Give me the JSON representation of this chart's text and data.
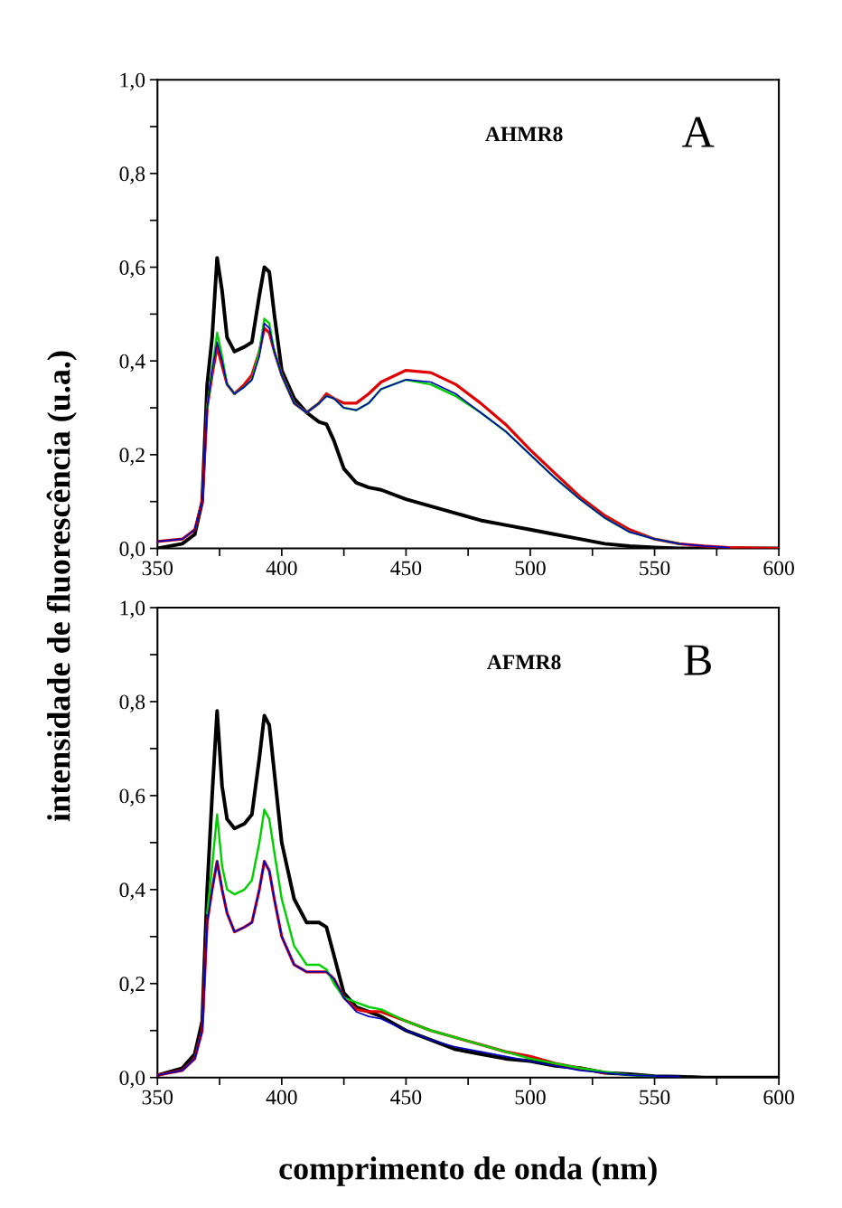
{
  "chart_data": [
    {
      "type": "line",
      "ylabel": "intensidade de fluorescência (u.a.)",
      "annotations": [
        "AHMR8",
        "A"
      ],
      "x": [
        350,
        360,
        365,
        368,
        370,
        372,
        374,
        376,
        378,
        381,
        385,
        388,
        391,
        393,
        395,
        397,
        400,
        405,
        410,
        415,
        418,
        421,
        425,
        430,
        435,
        440,
        450,
        460,
        470,
        480,
        490,
        500,
        510,
        520,
        530,
        540,
        550,
        560,
        570,
        580,
        600
      ],
      "series": [
        {
          "color": "#000000",
          "values": [
            0.0,
            0.01,
            0.03,
            0.1,
            0.35,
            0.45,
            0.62,
            0.55,
            0.45,
            0.42,
            0.43,
            0.44,
            0.54,
            0.6,
            0.59,
            0.5,
            0.38,
            0.32,
            0.29,
            0.27,
            0.265,
            0.23,
            0.17,
            0.14,
            0.13,
            0.125,
            0.105,
            0.09,
            0.075,
            0.06,
            0.05,
            0.04,
            0.03,
            0.02,
            0.01,
            0.005,
            0.002,
            0.0,
            0.0,
            0.0,
            0.0
          ]
        },
        {
          "color": "#e00000",
          "values": [
            0.015,
            0.02,
            0.04,
            0.1,
            0.3,
            0.37,
            0.43,
            0.39,
            0.35,
            0.33,
            0.35,
            0.37,
            0.42,
            0.47,
            0.46,
            0.42,
            0.37,
            0.31,
            0.29,
            0.31,
            0.33,
            0.32,
            0.31,
            0.31,
            0.33,
            0.355,
            0.38,
            0.375,
            0.35,
            0.31,
            0.265,
            0.21,
            0.16,
            0.11,
            0.07,
            0.04,
            0.02,
            0.01,
            0.005,
            0.002,
            0.0
          ]
        },
        {
          "color": "#00d000",
          "values": [
            null,
            null,
            null,
            null,
            0.3,
            0.38,
            0.46,
            0.41,
            0.35,
            0.33,
            0.345,
            0.36,
            0.42,
            0.49,
            0.48,
            0.42,
            0.37,
            0.31,
            0.29,
            0.31,
            0.325,
            0.32,
            0.3,
            0.295,
            0.31,
            0.34,
            0.36,
            0.35,
            0.325,
            0.29,
            0.25,
            0.2,
            0.15,
            0.105,
            0.065,
            0.035,
            0.02,
            0.01,
            null,
            null,
            null
          ]
        },
        {
          "color": "#0000c0",
          "values": [
            0.015,
            0.02,
            0.04,
            0.1,
            0.3,
            0.38,
            0.44,
            0.4,
            0.35,
            0.33,
            0.345,
            0.36,
            0.41,
            0.48,
            0.47,
            0.42,
            0.37,
            0.31,
            0.29,
            0.31,
            0.325,
            0.32,
            0.3,
            0.295,
            0.31,
            0.34,
            0.36,
            0.355,
            0.33,
            0.29,
            0.25,
            0.2,
            0.15,
            0.105,
            0.065,
            0.035,
            0.02,
            0.01,
            0.005,
            0.002,
            null
          ]
        }
      ],
      "xlim": [
        350,
        600
      ],
      "ylim": [
        0,
        1.0
      ],
      "xticks": [
        350,
        {
          "value": 375,
          "label": null
        },
        400,
        {
          "value": 425,
          "label": null
        },
        450,
        {
          "value": 475,
          "label": null
        },
        500,
        {
          "value": 525,
          "label": null
        },
        550,
        {
          "value": 575,
          "label": null
        },
        600
      ],
      "yticks": [
        {
          "value": 0,
          "label": "0,0"
        },
        {
          "value": 0.1,
          "label": null
        },
        {
          "value": 0.2,
          "label": "0,2"
        },
        {
          "value": 0.3,
          "label": null
        },
        {
          "value": 0.4,
          "label": "0,4"
        },
        {
          "value": 0.5,
          "label": null
        },
        {
          "value": 0.6,
          "label": "0,6"
        },
        {
          "value": 0.7,
          "label": null
        },
        {
          "value": 0.8,
          "label": "0,8"
        },
        {
          "value": 0.9,
          "label": null
        },
        {
          "value": 1.0,
          "label": "1,0"
        }
      ]
    },
    {
      "type": "line",
      "xlabel": "comprimento de onda (nm)",
      "annotations": [
        "AFMR8",
        "B"
      ],
      "x": [
        350,
        360,
        365,
        368,
        370,
        372,
        374,
        376,
        378,
        381,
        385,
        388,
        391,
        393,
        395,
        397,
        400,
        405,
        410,
        415,
        418,
        421,
        425,
        430,
        435,
        440,
        450,
        460,
        470,
        480,
        490,
        500,
        510,
        520,
        530,
        540,
        550,
        560,
        570,
        580,
        600
      ],
      "series": [
        {
          "color": "#000000",
          "values": [
            0.005,
            0.02,
            0.05,
            0.12,
            0.4,
            0.6,
            0.78,
            0.62,
            0.55,
            0.53,
            0.54,
            0.56,
            0.68,
            0.77,
            0.75,
            0.65,
            0.5,
            0.38,
            0.33,
            0.33,
            0.32,
            0.26,
            0.18,
            0.15,
            0.14,
            0.13,
            0.1,
            0.08,
            0.06,
            0.05,
            0.04,
            0.035,
            0.025,
            0.02,
            0.01,
            0.007,
            0.003,
            0.002,
            0.0,
            0.0,
            0.0
          ]
        },
        {
          "color": "#e00000",
          "values": [
            0.005,
            0.015,
            0.04,
            0.1,
            0.33,
            0.4,
            0.46,
            0.4,
            0.35,
            0.31,
            0.32,
            0.33,
            0.4,
            0.46,
            0.44,
            0.38,
            0.3,
            0.24,
            0.225,
            0.225,
            0.225,
            0.21,
            0.17,
            0.145,
            0.14,
            0.14,
            0.12,
            0.1,
            0.085,
            0.07,
            0.055,
            0.045,
            0.03,
            0.02,
            0.01,
            null,
            null,
            null,
            null,
            null,
            null
          ]
        },
        {
          "color": "#00d000",
          "values": [
            null,
            null,
            null,
            null,
            0.35,
            0.45,
            0.56,
            0.45,
            0.4,
            0.39,
            0.4,
            0.42,
            0.5,
            0.57,
            0.55,
            0.48,
            0.38,
            0.28,
            0.24,
            0.24,
            0.23,
            0.2,
            0.17,
            0.16,
            0.15,
            0.145,
            0.12,
            0.1,
            0.085,
            0.07,
            0.055,
            0.04,
            0.03,
            0.02,
            0.012,
            0.005,
            0.003,
            null,
            null,
            null,
            null
          ]
        },
        {
          "color": "#0000c0",
          "values": [
            0.005,
            0.015,
            0.04,
            0.1,
            0.33,
            0.4,
            0.46,
            0.4,
            0.35,
            0.31,
            0.32,
            0.33,
            0.4,
            0.46,
            0.44,
            0.38,
            0.3,
            0.24,
            0.225,
            0.225,
            0.225,
            0.21,
            0.17,
            0.14,
            0.13,
            0.125,
            0.1,
            0.08,
            0.065,
            0.055,
            0.045,
            0.035,
            0.025,
            0.015,
            0.01,
            0.005,
            0.003,
            0.002,
            null,
            null,
            null
          ]
        }
      ],
      "xlim": [
        350,
        600
      ],
      "ylim": [
        0,
        1.0
      ],
      "xticks": [
        350,
        {
          "value": 375,
          "label": null
        },
        400,
        {
          "value": 425,
          "label": null
        },
        450,
        {
          "value": 475,
          "label": null
        },
        500,
        {
          "value": 525,
          "label": null
        },
        550,
        {
          "value": 575,
          "label": null
        },
        600
      ],
      "yticks": [
        {
          "value": 0,
          "label": "0,0"
        },
        {
          "value": 0.1,
          "label": null
        },
        {
          "value": 0.2,
          "label": "0,2"
        },
        {
          "value": 0.3,
          "label": null
        },
        {
          "value": 0.4,
          "label": "0,4"
        },
        {
          "value": 0.5,
          "label": null
        },
        {
          "value": 0.6,
          "label": "0,6"
        },
        {
          "value": 0.7,
          "label": null
        },
        {
          "value": 0.8,
          "label": "0,8"
        },
        {
          "value": 0.9,
          "label": null
        },
        {
          "value": 1.0,
          "label": "1,0"
        }
      ]
    }
  ]
}
